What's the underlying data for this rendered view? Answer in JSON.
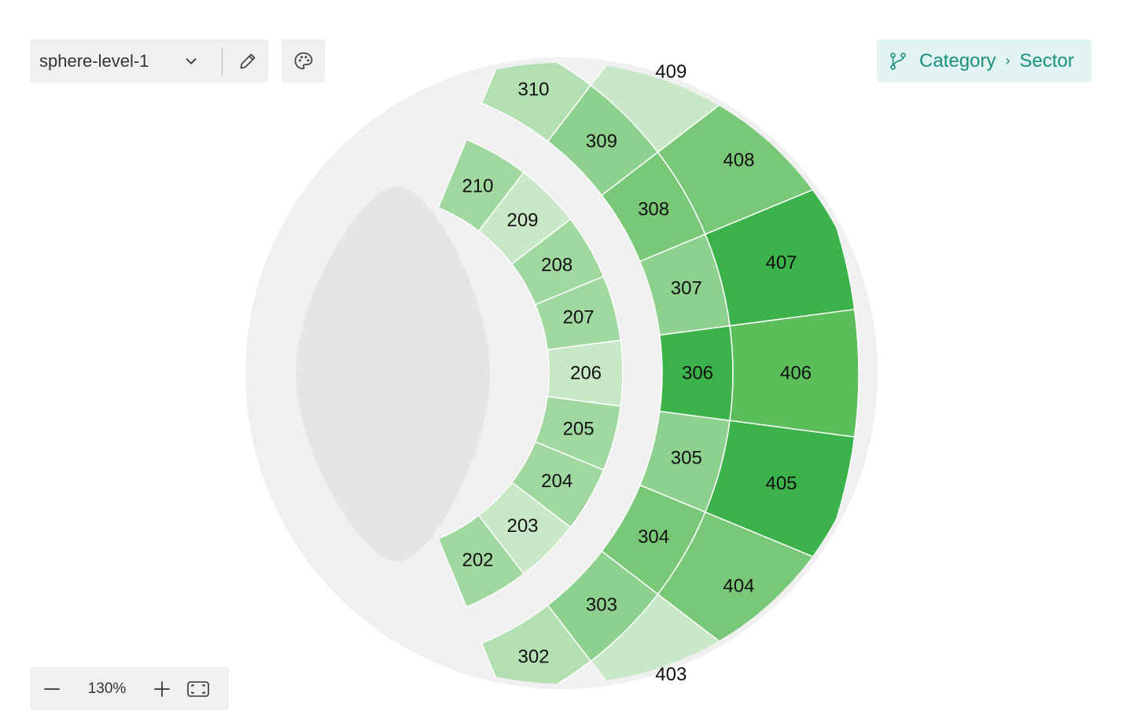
{
  "toolbar": {
    "map_name": "sphere-level-1",
    "icons": {
      "dropdown": "chevron-down-icon",
      "edit": "pencil-icon",
      "palette": "palette-icon"
    }
  },
  "breadcrumb": {
    "icon": "branch-icon",
    "items": [
      "Category",
      "Sector"
    ]
  },
  "zoom": {
    "level": "130%",
    "icons": {
      "out": "minus-icon",
      "in": "plus-icon",
      "fit": "fit-screen-icon"
    }
  },
  "colors": {
    "venue_ring": "#f0f0f0",
    "stage": "#e5e5e5",
    "scale": [
      "#c8e8c8",
      "#b2e0b2",
      "#a0d8a0",
      "#8ed18e",
      "#78c878",
      "#5bbe5b",
      "#3cb34a"
    ]
  },
  "sectors": [
    {
      "id": "210",
      "label": "210",
      "level": 2
    },
    {
      "id": "209",
      "label": "209",
      "level": 0
    },
    {
      "id": "208",
      "label": "208",
      "level": 2
    },
    {
      "id": "207",
      "label": "207",
      "level": 2
    },
    {
      "id": "206",
      "label": "206",
      "level": 0
    },
    {
      "id": "205",
      "label": "205",
      "level": 2
    },
    {
      "id": "204",
      "label": "204",
      "level": 2
    },
    {
      "id": "203",
      "label": "203",
      "level": 0
    },
    {
      "id": "202",
      "label": "202",
      "level": 2
    },
    {
      "id": "310",
      "label": "310",
      "level": 1
    },
    {
      "id": "309",
      "label": "309",
      "level": 3
    },
    {
      "id": "308",
      "label": "308",
      "level": 4
    },
    {
      "id": "307",
      "label": "307",
      "level": 3
    },
    {
      "id": "306",
      "label": "306",
      "level": 6
    },
    {
      "id": "305",
      "label": "305",
      "level": 3
    },
    {
      "id": "304",
      "label": "304",
      "level": 4
    },
    {
      "id": "303",
      "label": "303",
      "level": 3
    },
    {
      "id": "302",
      "label": "302",
      "level": 1
    },
    {
      "id": "409",
      "label": "409",
      "level": 0
    },
    {
      "id": "408",
      "label": "408",
      "level": 4
    },
    {
      "id": "407",
      "label": "407",
      "level": 6
    },
    {
      "id": "406",
      "label": "406",
      "level": 5
    },
    {
      "id": "405",
      "label": "405",
      "level": 6
    },
    {
      "id": "404",
      "label": "404",
      "level": 4
    },
    {
      "id": "403",
      "label": "403",
      "level": 0
    }
  ]
}
